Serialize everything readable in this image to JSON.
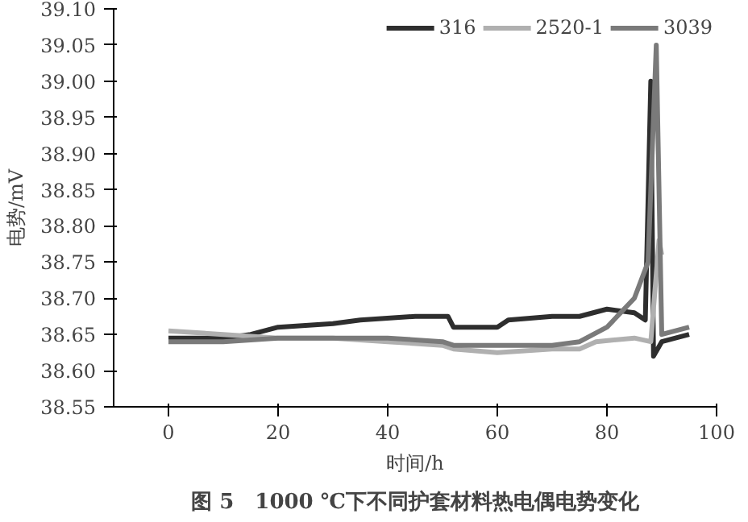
{
  "chart_data": {
    "type": "line",
    "title": "图 5　1000 ℃下不同护套材料热电偶电势变化",
    "xlabel": "时间/h",
    "ylabel": "电势/mV",
    "xlim": [
      -10,
      100
    ],
    "xticks": [
      0,
      20,
      40,
      60,
      80,
      100
    ],
    "ylim": [
      38.55,
      39.1
    ],
    "yticks": [
      {
        "value": 38.55,
        "label": "38.55"
      },
      {
        "value": 38.6,
        "label": "38.60"
      },
      {
        "value": 38.65,
        "label": "38.65"
      },
      {
        "value": 38.7,
        "label": "38.70"
      },
      {
        "value": 38.75,
        "label": "38.75"
      },
      {
        "value": 38.8,
        "label": "38.80"
      },
      {
        "value": 38.85,
        "label": "38.85"
      },
      {
        "value": 38.9,
        "label": "38.90"
      },
      {
        "value": 38.95,
        "label": "38.95"
      },
      {
        "value": 39.0,
        "label": "39.00"
      },
      {
        "value": 39.05,
        "label": "39.05"
      },
      {
        "value": 39.1,
        "label": "39.10"
      }
    ],
    "grid": false,
    "legend": "top right",
    "line_style": "solid",
    "marker": "none",
    "series": [
      {
        "name": "316",
        "color": "#2e2e2e",
        "x": [
          0,
          10,
          15,
          20,
          30,
          35,
          45,
          51,
          52,
          60,
          62,
          70,
          75,
          80,
          85,
          87,
          88,
          88.5,
          90,
          95
        ],
        "values": [
          38.645,
          38.645,
          38.65,
          38.66,
          38.665,
          38.67,
          38.675,
          38.675,
          38.66,
          38.66,
          38.67,
          38.675,
          38.675,
          38.685,
          38.68,
          38.67,
          39.0,
          38.62,
          38.64,
          38.65
        ]
      },
      {
        "name": "2520-1",
        "color": "#b0b0b0",
        "x": [
          0,
          10,
          20,
          30,
          40,
          50,
          52,
          60,
          70,
          75,
          78,
          85,
          88,
          89.5,
          90
        ],
        "values": [
          38.655,
          38.65,
          38.645,
          38.645,
          38.64,
          38.635,
          38.63,
          38.625,
          38.63,
          38.63,
          38.64,
          38.645,
          38.64,
          38.78,
          38.76
        ]
      },
      {
        "name": "3039",
        "color": "#7a7a7a",
        "x": [
          0,
          10,
          20,
          30,
          40,
          50,
          52,
          60,
          70,
          75,
          80,
          85,
          87.5,
          89,
          90,
          95
        ],
        "values": [
          38.64,
          38.64,
          38.645,
          38.645,
          38.645,
          38.64,
          38.635,
          38.635,
          38.635,
          38.64,
          38.66,
          38.7,
          38.75,
          39.05,
          38.65,
          38.66
        ]
      }
    ]
  }
}
